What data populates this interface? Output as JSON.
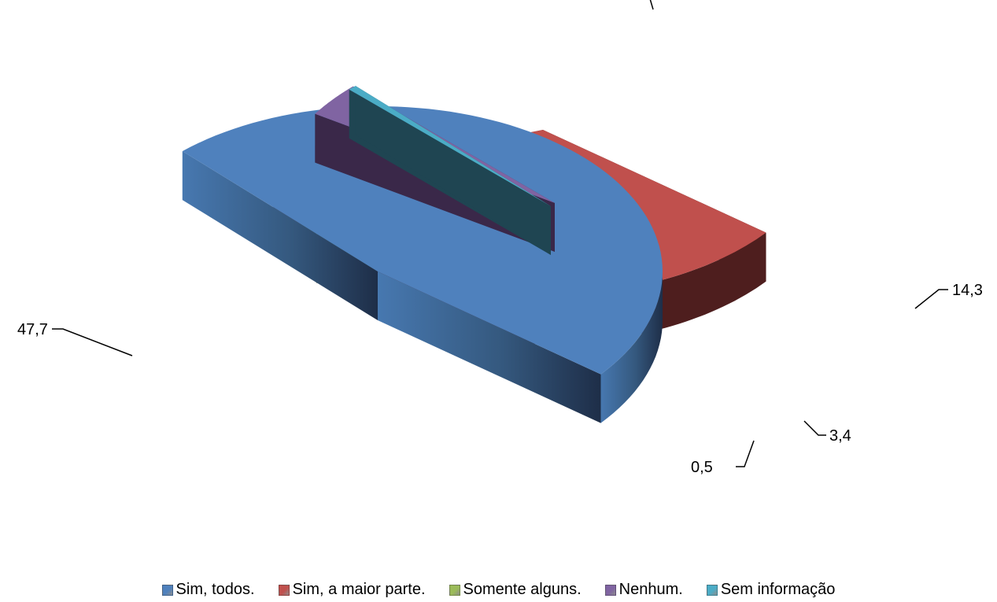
{
  "chart_data": {
    "type": "pie",
    "style": "3d-exploded",
    "categories": [
      "Sim, todos.",
      "Sim, a maior parte.",
      "Somente alguns.",
      "Nenhum.",
      "Sem informação"
    ],
    "values": [
      47.7,
      34.1,
      14.3,
      3.4,
      0.5
    ],
    "data_labels": [
      "47,7",
      "",
      "14,3",
      "3,4",
      "0,5"
    ],
    "colors": [
      "#4F81BD",
      "#C0504D",
      "#9BBB59",
      "#8064A2",
      "#4BACC6"
    ],
    "legend_position": "bottom"
  }
}
